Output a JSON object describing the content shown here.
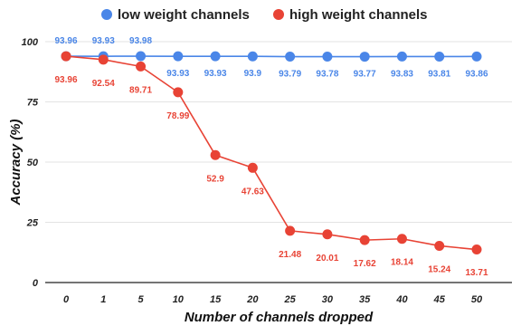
{
  "chart_data": {
    "type": "line",
    "title": "",
    "xlabel": "Number of channels dropped",
    "ylabel": "Accuracy (%)",
    "categories": [
      "0",
      "1",
      "5",
      "10",
      "15",
      "20",
      "25",
      "30",
      "35",
      "40",
      "45",
      "50"
    ],
    "ylim": [
      0,
      100
    ],
    "yticks": [
      "0",
      "25",
      "50",
      "75",
      "100"
    ],
    "grid": "horizontal",
    "legend_position": "top",
    "series": [
      {
        "name": "low weight channels",
        "color": "#4a86e8",
        "values": [
          93.96,
          93.93,
          93.98,
          93.93,
          93.93,
          93.9,
          93.79,
          93.78,
          93.77,
          93.83,
          93.81,
          93.86
        ],
        "labels": [
          "93.96",
          "93.93",
          "93.98",
          "93.93",
          "93.93",
          "93.9",
          "93.79",
          "93.78",
          "93.77",
          "93.83",
          "93.81",
          "93.86"
        ]
      },
      {
        "name": "high weight channels",
        "color": "#e84335",
        "values": [
          93.96,
          92.54,
          89.71,
          78.99,
          52.9,
          47.63,
          21.48,
          20.01,
          17.62,
          18.14,
          15.24,
          13.71
        ],
        "labels": [
          "93.96",
          "92.54",
          "89.71",
          "78.99",
          "52.9",
          "47.63",
          "21.48",
          "20.01",
          "17.62",
          "18.14",
          "15.24",
          "13.71"
        ]
      }
    ]
  }
}
